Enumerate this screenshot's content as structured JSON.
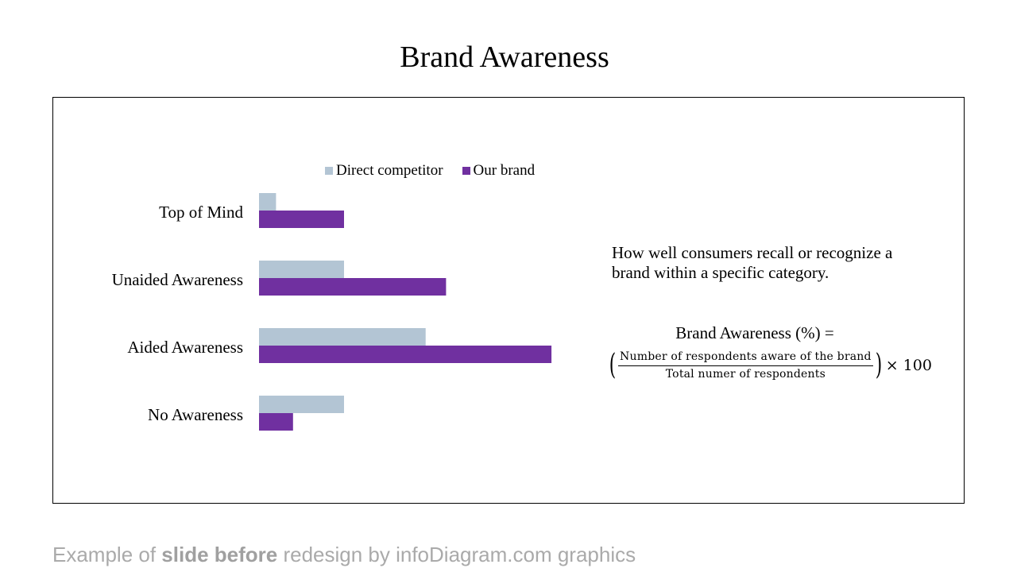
{
  "page": {
    "title": "Brand Awareness",
    "description": "How well consumers recall or recognize a brand within a specific category.",
    "formula": {
      "label": "Brand Awareness (%) =",
      "numerator": "Number of respondents aware of the brand",
      "denominator": "Total numer of respondents",
      "multiplier": "× 100",
      "open_paren": "(",
      "close_paren": ")"
    },
    "footer": {
      "prefix": "Example of ",
      "bold": "slide before",
      "suffix": " redesign by infoDiagram.com graphics"
    }
  },
  "chart_data": {
    "type": "bar",
    "orientation": "horizontal",
    "categories": [
      "Top of Mind",
      "Unaided Awareness",
      "Aided Awareness",
      "No Awareness"
    ],
    "series": [
      {
        "name": "Direct competitor",
        "color": "#b3c5d4",
        "values": [
          5,
          25,
          49,
          25
        ]
      },
      {
        "name": "Our brand",
        "color": "#7030a0",
        "values": [
          25,
          55,
          86,
          10
        ]
      }
    ],
    "xlim": [
      0,
      100
    ],
    "legend": "top",
    "grid": false,
    "axes_visible": false
  }
}
